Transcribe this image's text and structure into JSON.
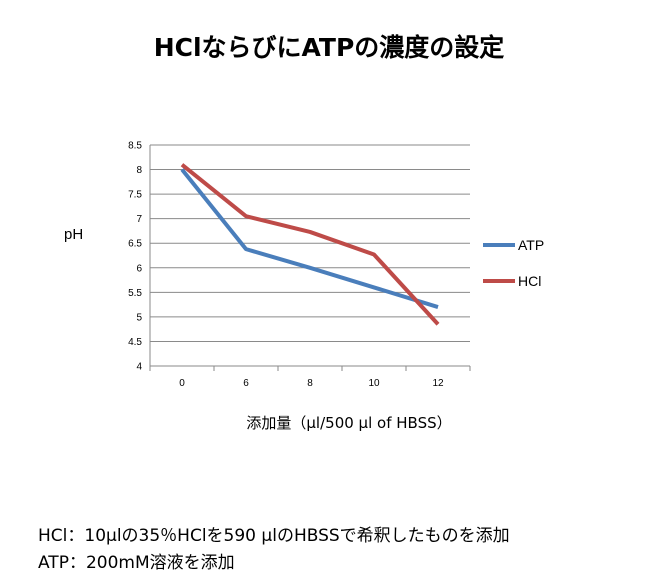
{
  "chart_data": {
    "type": "line",
    "title": "HClならびにATPの濃度の設定",
    "xlabel": "添加量（μl/500 μl of HBSS）",
    "ylabel": "pH",
    "categories": [
      "0",
      "6",
      "8",
      "10",
      "12"
    ],
    "ylim": [
      4,
      8.5
    ],
    "yticks": [
      "4",
      "4.5",
      "5",
      "5.5",
      "6",
      "6.5",
      "7",
      "7.5",
      "8",
      "8.5"
    ],
    "grid": true,
    "legend_position": "right",
    "series": [
      {
        "name": "ATP",
        "color": "#4a7ebb",
        "values": [
          8.0,
          6.38,
          6.0,
          5.6,
          5.2
        ]
      },
      {
        "name": "HCl",
        "color": "#be4b48",
        "values": [
          8.1,
          7.05,
          6.73,
          6.27,
          4.85
        ]
      }
    ]
  },
  "notes": [
    "HCl：10μlの35％HClを590 μlのHBSSで希釈したものを添加",
    "ATP：200mM溶液を添加"
  ]
}
